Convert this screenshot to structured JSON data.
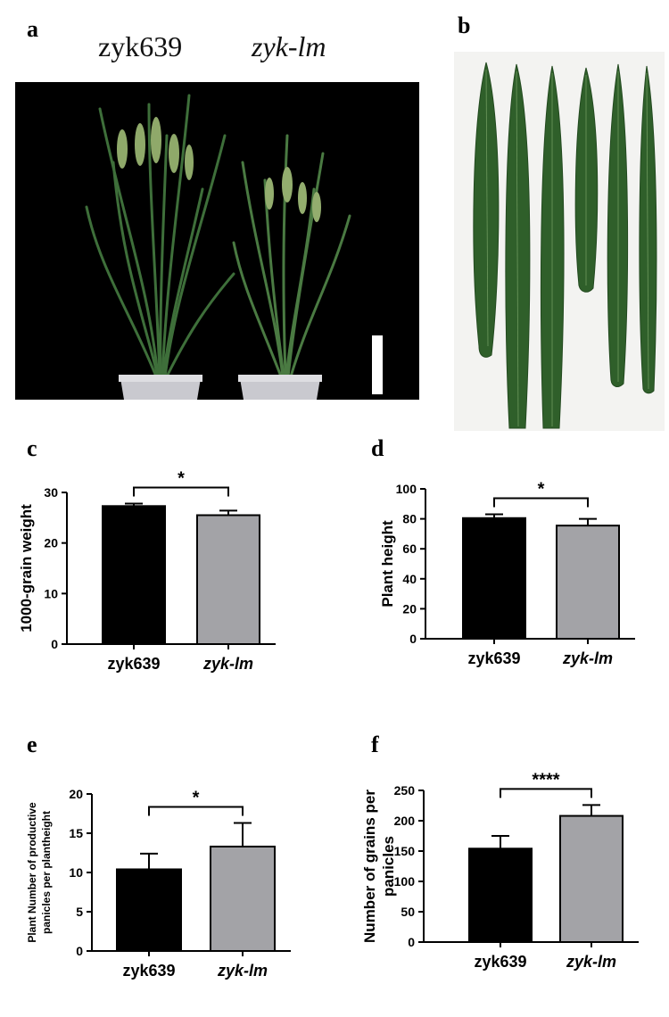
{
  "panels": {
    "a": {
      "letter": "a",
      "label_wt": "zyk639",
      "label_mut": "zyk-lm"
    },
    "b": {
      "letter": "b"
    },
    "c": {
      "letter": "c"
    },
    "d": {
      "letter": "d"
    },
    "e": {
      "letter": "e"
    },
    "f": {
      "letter": "f"
    }
  },
  "chart_data": [
    {
      "type": "bar",
      "panel": "c",
      "categories": [
        "zyk639",
        "zyk-lm"
      ],
      "values": [
        27.3,
        25.5
      ],
      "errors": [
        0.5,
        0.9
      ],
      "ylabel": "1000-grain weight",
      "xlabel": "",
      "ylim": [
        0,
        30
      ],
      "yticks": [
        0,
        10,
        20,
        30
      ],
      "significance": "*",
      "colors": [
        "#000000",
        "#a3a3a7"
      ]
    },
    {
      "type": "bar",
      "panel": "d",
      "categories": [
        "zyk639",
        "zyk-lm"
      ],
      "values": [
        80.5,
        75.5
      ],
      "errors": [
        2.5,
        4.5
      ],
      "ylabel": "Plant height",
      "xlabel": "",
      "ylim": [
        0,
        100
      ],
      "yticks": [
        0,
        20,
        40,
        60,
        80,
        100
      ],
      "significance": "*",
      "colors": [
        "#000000",
        "#a3a3a7"
      ]
    },
    {
      "type": "bar",
      "panel": "e",
      "categories": [
        "zyk639",
        "zyk-lm"
      ],
      "values": [
        10.4,
        13.3
      ],
      "errors": [
        2.0,
        3.0
      ],
      "ylabel": "Plant Number of productive panicles per plantheight",
      "ylabel_lines": [
        "Plant Number of productive",
        "panicles per plantheight"
      ],
      "xlabel": "",
      "ylim": [
        0,
        20
      ],
      "yticks": [
        0,
        5,
        10,
        15,
        20
      ],
      "significance": "*",
      "colors": [
        "#000000",
        "#a3a3a7"
      ]
    },
    {
      "type": "bar",
      "panel": "f",
      "categories": [
        "zyk639",
        "zyk-lm"
      ],
      "values": [
        154,
        208
      ],
      "errors": [
        21,
        18
      ],
      "ylabel": "Number of grains per panicles",
      "ylabel_lines": [
        "Number of grains per",
        "panicles"
      ],
      "xlabel": "",
      "ylim": [
        0,
        250
      ],
      "yticks": [
        0,
        50,
        100,
        150,
        200,
        250
      ],
      "significance": "****",
      "colors": [
        "#000000",
        "#a3a3a7"
      ]
    }
  ]
}
